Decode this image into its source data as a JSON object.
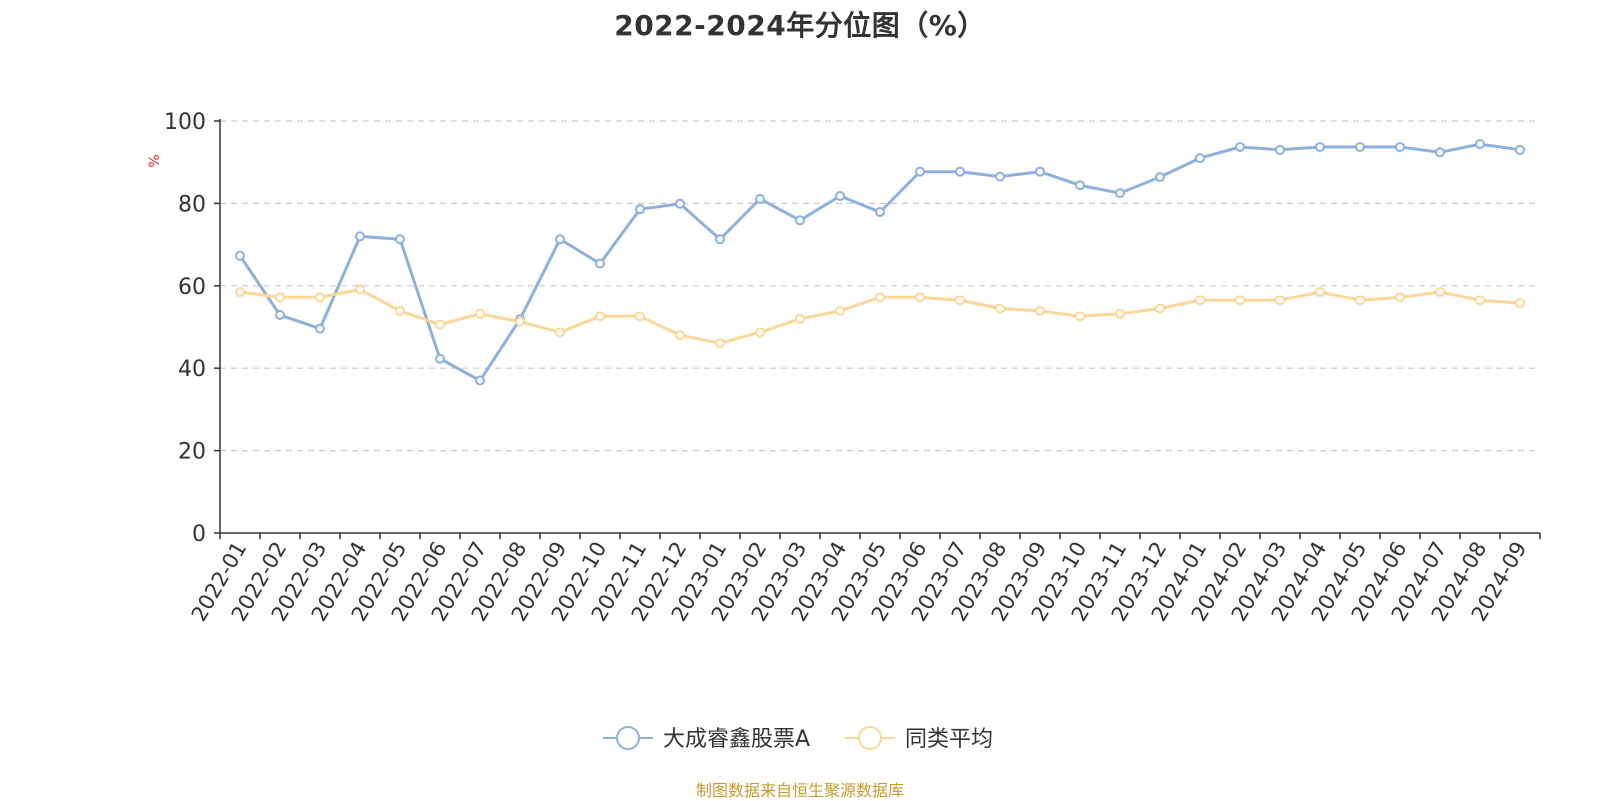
{
  "chart_data": {
    "type": "line",
    "title": "2022-2024年分位图（%）",
    "ylabel": "%",
    "ylim": [
      0,
      100
    ],
    "yticks": [
      0,
      20,
      40,
      60,
      80,
      100
    ],
    "grid": true,
    "legend_position": "bottom-center",
    "categories": [
      "2022-01",
      "2022-02",
      "2022-03",
      "2022-04",
      "2022-05",
      "2022-06",
      "2022-07",
      "2022-08",
      "2022-09",
      "2022-10",
      "2022-11",
      "2022-12",
      "2023-01",
      "2023-02",
      "2023-03",
      "2023-04",
      "2023-05",
      "2023-06",
      "2023-07",
      "2023-08",
      "2023-09",
      "2023-10",
      "2023-11",
      "2023-12",
      "2024-01",
      "2024-02",
      "2024-03",
      "2024-04",
      "2024-05",
      "2024-06",
      "2024-07",
      "2024-08",
      "2024-09"
    ],
    "series": [
      {
        "name": "大成睿鑫股票A",
        "color": "#8eb0dc",
        "values": [
          67.3,
          52.9,
          49.6,
          72.0,
          71.3,
          42.3,
          37.0,
          51.9,
          71.3,
          65.4,
          78.6,
          79.9,
          71.3,
          81.1,
          75.9,
          81.8,
          77.9,
          87.7,
          87.7,
          86.5,
          87.7,
          84.4,
          82.5,
          86.4,
          91.0,
          93.7,
          93.0,
          93.7,
          93.7,
          93.7,
          92.4,
          94.4,
          93.0
        ]
      },
      {
        "name": "同类平均",
        "color": "#fbd899",
        "values": [
          58.5,
          57.2,
          57.2,
          59.1,
          53.9,
          50.6,
          53.2,
          51.3,
          48.7,
          52.6,
          52.6,
          48.0,
          46.1,
          48.7,
          52.0,
          53.9,
          57.2,
          57.2,
          56.5,
          54.5,
          53.9,
          52.6,
          53.2,
          54.5,
          56.5,
          56.5,
          56.5,
          58.5,
          56.5,
          57.2,
          58.5,
          56.5,
          55.8
        ]
      }
    ]
  },
  "source_text": "制图数据来自恒生聚源数据库"
}
